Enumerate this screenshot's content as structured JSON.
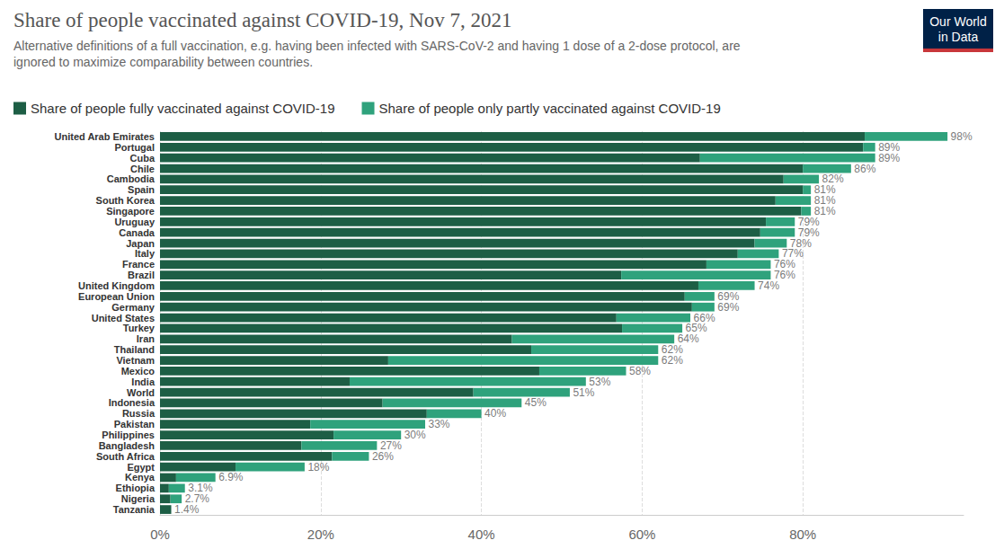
{
  "chart_data": {
    "type": "bar",
    "title": "Share of people vaccinated against COVID-19, Nov 7, 2021",
    "subtitle": "Alternative definitions of a full vaccination, e.g. having been infected with SARS-CoV-2 and having 1 dose of a 2-dose protocol, are\nignored to maximize comparability between countries.",
    "logo": "Our World\nin Data",
    "orientation": "horizontal",
    "stacked": true,
    "grid": true,
    "legend": "top-left",
    "categories": [
      "United Arab Emirates",
      "Portugal",
      "Cuba",
      "Chile",
      "Cambodia",
      "Spain",
      "South Korea",
      "Singapore",
      "Uruguay",
      "Canada",
      "Japan",
      "Italy",
      "France",
      "Brazil",
      "United Kingdom",
      "European Union",
      "Germany",
      "United States",
      "Turkey",
      "Iran",
      "Thailand",
      "Vietnam",
      "Mexico",
      "India",
      "World",
      "Indonesia",
      "Russia",
      "Pakistan",
      "Philippines",
      "Bangladesh",
      "South Africa",
      "Egypt",
      "Kenya",
      "Ethiopia",
      "Nigeria",
      "Tanzania"
    ],
    "series": [
      {
        "name": "Share of people fully vaccinated against COVID-19",
        "color": "#1d5e45",
        "values": [
          87.7,
          87.5,
          67.2,
          80.0,
          77.6,
          80.0,
          76.6,
          79.8,
          75.4,
          74.7,
          74.0,
          71.9,
          68.0,
          57.4,
          67.0,
          65.3,
          66.2,
          56.8,
          57.5,
          43.8,
          46.2,
          28.4,
          47.2,
          23.6,
          39.0,
          27.7,
          33.2,
          18.7,
          21.6,
          17.6,
          21.4,
          9.4,
          2.0,
          1.1,
          1.3,
          1.4
        ]
      },
      {
        "name": "Share of people only partly vaccinated against COVID-19",
        "color": "#2fa27c",
        "values": [
          10.3,
          1.5,
          21.8,
          6.0,
          4.4,
          1.0,
          4.4,
          1.2,
          3.6,
          4.3,
          4.0,
          5.1,
          8.0,
          18.6,
          7.0,
          3.7,
          2.8,
          9.2,
          7.5,
          20.2,
          15.8,
          33.6,
          10.8,
          29.4,
          12.0,
          17.3,
          6.8,
          14.3,
          8.4,
          9.4,
          4.6,
          8.6,
          4.9,
          2.0,
          1.4,
          0.0
        ]
      }
    ],
    "totals": [
      98,
      89,
      89,
      86,
      82,
      81,
      81,
      81,
      79,
      79,
      78,
      77,
      76,
      76,
      74,
      69,
      69,
      66,
      65,
      64,
      62,
      62,
      58,
      53,
      51,
      45,
      40,
      33,
      30,
      27,
      26,
      18,
      6.9,
      3.1,
      2.7,
      1.4
    ],
    "total_labels": [
      "98%",
      "89%",
      "89%",
      "86%",
      "82%",
      "81%",
      "81%",
      "81%",
      "79%",
      "79%",
      "78%",
      "77%",
      "76%",
      "76%",
      "74%",
      "69%",
      "69%",
      "66%",
      "65%",
      "64%",
      "62%",
      "62%",
      "58%",
      "53%",
      "51%",
      "45%",
      "40%",
      "33%",
      "30%",
      "27%",
      "26%",
      "18%",
      "6.9%",
      "3.1%",
      "2.7%",
      "1.4%"
    ],
    "xlim": [
      0,
      100
    ],
    "xticks": [
      {
        "value": 0,
        "label": "0%"
      },
      {
        "value": 20,
        "label": "20%"
      },
      {
        "value": 40,
        "label": "40%"
      },
      {
        "value": 60,
        "label": "60%"
      },
      {
        "value": 80,
        "label": "80%"
      }
    ]
  }
}
